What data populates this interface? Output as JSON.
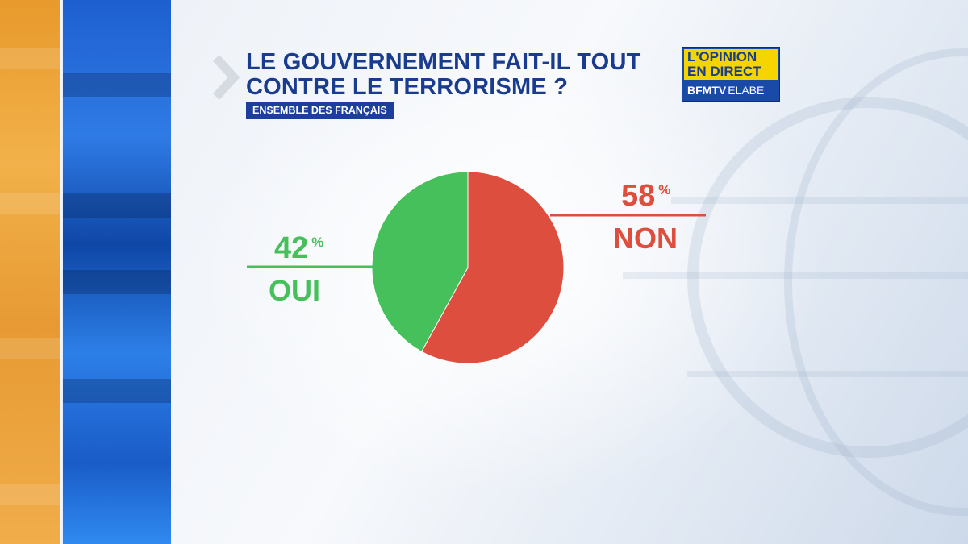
{
  "header": {
    "title_line1": "LE GOUVERNEMENT FAIT-IL TOUT",
    "title_line2": "CONTRE LE TERRORISME ?",
    "subtitle": "ENSEMBLE DES FRANÇAIS"
  },
  "logo": {
    "line1": "L'OPINION",
    "line2": "EN DIRECT",
    "brand": "BFMTV",
    "partner": "ELABE"
  },
  "colors": {
    "oui": "#45c05a",
    "non": "#de4e3e",
    "title": "#1a3c8e"
  },
  "chart_data": {
    "type": "pie",
    "title": "LE GOUVERNEMENT FAIT-IL TOUT CONTRE LE TERRORISME ?",
    "subtitle": "ENSEMBLE DES FRANÇAIS",
    "slices": [
      {
        "label": "NON",
        "value": 58,
        "display": "58",
        "unit": "%",
        "color": "#de4e3e"
      },
      {
        "label": "OUI",
        "value": 42,
        "display": "42",
        "unit": "%",
        "color": "#45c05a"
      }
    ]
  }
}
